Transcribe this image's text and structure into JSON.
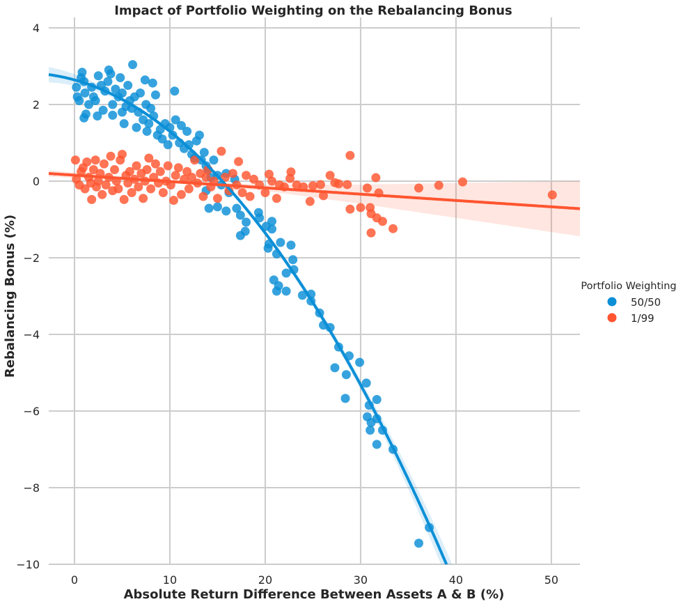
{
  "chart_data": {
    "type": "scatter",
    "title": "Impact of Portfolio Weighting on the Rebalancing Bonus",
    "xlabel": "Absolute Return Difference Between Assets A & B (%)",
    "ylabel": "Rebalancing Bonus (%)",
    "xlim": [
      -2.7,
      53
    ],
    "ylim": [
      -10,
      4
    ],
    "xticks": [
      0,
      10,
      20,
      30,
      40,
      50
    ],
    "yticks": [
      4,
      2,
      0,
      -2,
      -4,
      -6,
      -8,
      -10
    ],
    "ytick_labels": [
      "4",
      "2",
      "0",
      "−2",
      "−4",
      "−6",
      "−8",
      "−10"
    ],
    "grid": true,
    "legend": {
      "title": "Portfolio Weighting",
      "placement": "right"
    },
    "series": [
      {
        "name": "50/50",
        "color": "#0b8fd7",
        "fit": {
          "order": 2,
          "coef": [
            2.641,
            -0.069,
            -0.006541
          ]
        },
        "ci_halfwidth": [
          [
            -2.7,
            0.2
          ],
          [
            5,
            0.06
          ],
          [
            15,
            0.05
          ],
          [
            30,
            0.12
          ],
          [
            39,
            0.35
          ]
        ],
        "points": [
          [
            0.8,
            2.84
          ],
          [
            3.6,
            2.9
          ],
          [
            6.1,
            3.04
          ],
          [
            7.4,
            2.64
          ],
          [
            8.2,
            2.56
          ],
          [
            10.5,
            2.35
          ],
          [
            0.2,
            2.45
          ],
          [
            0.3,
            2.2
          ],
          [
            0.5,
            2.1
          ],
          [
            0.7,
            2.7
          ],
          [
            1.0,
            2.6
          ],
          [
            1.1,
            2.3
          ],
          [
            1.2,
            1.75
          ],
          [
            1.0,
            1.65
          ],
          [
            1.5,
            2.0
          ],
          [
            1.8,
            2.45
          ],
          [
            2.0,
            2.2
          ],
          [
            2.2,
            2.1
          ],
          [
            2.4,
            1.7
          ],
          [
            2.5,
            2.75
          ],
          [
            2.8,
            2.5
          ],
          [
            3.0,
            1.85
          ],
          [
            3.2,
            2.35
          ],
          [
            3.5,
            2.6
          ],
          [
            3.8,
            2.8
          ],
          [
            4.0,
            2.0
          ],
          [
            4.0,
            1.72
          ],
          [
            4.3,
            2.4
          ],
          [
            4.6,
            2.2
          ],
          [
            4.8,
            2.7
          ],
          [
            5.0,
            2.3
          ],
          [
            5.0,
            1.8
          ],
          [
            5.2,
            1.5
          ],
          [
            5.4,
            1.95
          ],
          [
            5.6,
            2.5
          ],
          [
            5.8,
            2.1
          ],
          [
            6.0,
            1.9
          ],
          [
            6.3,
            2.2
          ],
          [
            6.5,
            1.4
          ],
          [
            6.7,
            1.8
          ],
          [
            6.9,
            2.3
          ],
          [
            7.2,
            1.6
          ],
          [
            7.5,
            2.0
          ],
          [
            7.6,
            1.3
          ],
          [
            7.8,
            1.5
          ],
          [
            8.0,
            1.9
          ],
          [
            8.3,
            1.7
          ],
          [
            8.5,
            2.25
          ],
          [
            8.7,
            1.2
          ],
          [
            9.0,
            1.35
          ],
          [
            9.2,
            1.1
          ],
          [
            9.5,
            1.5
          ],
          [
            9.8,
            0.95
          ],
          [
            10.0,
            1.4
          ],
          [
            10.3,
            1.2
          ],
          [
            10.6,
            1.6
          ],
          [
            11.0,
            1.0
          ],
          [
            11.2,
            1.45
          ],
          [
            11.5,
            0.85
          ],
          [
            11.8,
            1.3
          ],
          [
            12.0,
            0.95
          ],
          [
            12.3,
            0.7
          ],
          [
            12.6,
            0.6
          ],
          [
            12.8,
            1.05
          ],
          [
            13.1,
            1.2
          ],
          [
            13.3,
            0.55
          ],
          [
            13.6,
            0.75
          ],
          [
            13.8,
            0.4
          ],
          [
            14.0,
            0.3
          ],
          [
            14.3,
            0.1
          ],
          [
            14.6,
            0.55
          ],
          [
            15.0,
            0.15
          ],
          [
            15.4,
            -0.1
          ],
          [
            15.9,
            0.2
          ],
          [
            16.2,
            -0.3
          ],
          [
            16.8,
            0.05
          ],
          [
            13.8,
            -0.25
          ],
          [
            14.1,
            -0.71
          ],
          [
            15.0,
            -0.67
          ],
          [
            15.9,
            -0.78
          ],
          [
            17.0,
            -0.71
          ],
          [
            17.4,
            -0.89
          ],
          [
            17.4,
            -1.42
          ],
          [
            17.9,
            -1.31
          ],
          [
            18.0,
            -1.07
          ],
          [
            19.3,
            -0.82
          ],
          [
            19.4,
            -0.96
          ],
          [
            20.1,
            -1.18
          ],
          [
            20.7,
            -1.05
          ],
          [
            20.7,
            -1.25
          ],
          [
            20.3,
            -1.75
          ],
          [
            20.4,
            -1.64
          ],
          [
            21.2,
            -1.9
          ],
          [
            21.6,
            -1.6
          ],
          [
            22.7,
            -1.67
          ],
          [
            22.9,
            -2.05
          ],
          [
            23.0,
            -2.31
          ],
          [
            22.2,
            -2.4
          ],
          [
            20.9,
            -2.58
          ],
          [
            21.2,
            -2.87
          ],
          [
            21.4,
            -2.73
          ],
          [
            22.2,
            -2.87
          ],
          [
            23.9,
            -2.98
          ],
          [
            24.8,
            -2.95
          ],
          [
            24.8,
            -3.13
          ],
          [
            25.7,
            -3.44
          ],
          [
            26.1,
            -3.76
          ],
          [
            26.8,
            -3.82
          ],
          [
            27.7,
            -4.33
          ],
          [
            27.3,
            -4.87
          ],
          [
            28.5,
            -5.05
          ],
          [
            28.4,
            -5.67
          ],
          [
            28.8,
            -4.56
          ],
          [
            29.9,
            -4.73
          ],
          [
            30.6,
            -5.27
          ],
          [
            30.9,
            -5.85
          ],
          [
            31.7,
            -6.2
          ],
          [
            30.7,
            -6.15
          ],
          [
            32.3,
            -6.5
          ],
          [
            31.0,
            -6.5
          ],
          [
            31.1,
            -6.3
          ],
          [
            31.7,
            -6.87
          ],
          [
            31.7,
            -5.7
          ],
          [
            33.4,
            -7.0
          ],
          [
            36.1,
            -9.45
          ],
          [
            37.2,
            -9.04
          ]
        ]
      },
      {
        "name": "1/99",
        "color": "#ff5530",
        "fit": {
          "order": 1,
          "coef": [
            0.155,
            -0.0165
          ]
        },
        "ci_halfwidth": [
          [
            -2.7,
            0.08
          ],
          [
            10,
            0.04
          ],
          [
            20,
            0.08
          ],
          [
            30,
            0.25
          ],
          [
            53,
            0.72
          ]
        ],
        "points": [
          [
            0.1,
            0.55
          ],
          [
            0.2,
            0.05
          ],
          [
            0.5,
            -0.1
          ],
          [
            0.7,
            0.25
          ],
          [
            0.9,
            0.35
          ],
          [
            1.1,
            -0.2
          ],
          [
            1.3,
            0.5
          ],
          [
            1.5,
            0.1
          ],
          [
            1.7,
            -0.05
          ],
          [
            1.8,
            -0.48
          ],
          [
            2.0,
            0.3
          ],
          [
            2.2,
            0.55
          ],
          [
            2.3,
            -0.15
          ],
          [
            2.5,
            0.0
          ],
          [
            2.7,
            0.2
          ],
          [
            2.9,
            -0.35
          ],
          [
            3.1,
            0.45
          ],
          [
            3.3,
            -0.1
          ],
          [
            3.6,
            0.1
          ],
          [
            3.8,
            0.65
          ],
          [
            4.0,
            -0.25
          ],
          [
            4.2,
            0.3
          ],
          [
            4.4,
            0.0
          ],
          [
            4.6,
            -0.2
          ],
          [
            4.8,
            0.55
          ],
          [
            5.0,
            0.7
          ],
          [
            5.2,
            -0.48
          ],
          [
            5.4,
            0.15
          ],
          [
            5.6,
            -0.05
          ],
          [
            5.8,
            0.25
          ],
          [
            6.0,
            -0.3
          ],
          [
            6.3,
            0.05
          ],
          [
            6.5,
            0.4
          ],
          [
            6.7,
            -0.15
          ],
          [
            7.0,
            0.2
          ],
          [
            7.2,
            -0.45
          ],
          [
            7.4,
            0.0
          ],
          [
            7.6,
            0.3
          ],
          [
            7.8,
            0.6
          ],
          [
            8.0,
            -0.2
          ],
          [
            8.3,
            0.1
          ],
          [
            8.5,
            0.45
          ],
          [
            8.8,
            -0.05
          ],
          [
            9.0,
            0.25
          ],
          [
            9.3,
            -0.3
          ],
          [
            9.6,
            0.0
          ],
          [
            9.8,
            0.4
          ],
          [
            10.1,
            -0.1
          ],
          [
            10.4,
            -0.5
          ],
          [
            10.6,
            0.15
          ],
          [
            10.9,
            0.35
          ],
          [
            11.2,
            -0.35
          ],
          [
            11.5,
            0.05
          ],
          [
            11.8,
            0.25
          ],
          [
            12.0,
            -0.2
          ],
          [
            12.3,
            0.1
          ],
          [
            12.6,
            0.55
          ],
          [
            12.9,
            -0.05
          ],
          [
            13.2,
            0.2
          ],
          [
            13.5,
            -0.4
          ],
          [
            13.8,
            0.1
          ],
          [
            14.0,
            0.3
          ],
          [
            14.3,
            -0.15
          ],
          [
            14.6,
            0.0
          ],
          [
            15.0,
            -0.45
          ],
          [
            15.4,
            0.78
          ],
          [
            15.8,
            0.1
          ],
          [
            16.2,
            -0.25
          ],
          [
            16.6,
            0.2
          ],
          [
            17.0,
            -0.1
          ],
          [
            17.2,
            0.51
          ],
          [
            17.6,
            -0.3
          ],
          [
            18.0,
            0.15
          ],
          [
            18.4,
            -0.4
          ],
          [
            18.8,
            0.05
          ],
          [
            19.4,
            -0.1
          ],
          [
            20.0,
            -0.3
          ],
          [
            20.4,
            0.18
          ],
          [
            20.7,
            0.0
          ],
          [
            21.2,
            -0.45
          ],
          [
            21.5,
            -0.1
          ],
          [
            22.0,
            -0.15
          ],
          [
            22.6,
            0.07
          ],
          [
            22.7,
            0.24
          ],
          [
            23.3,
            -0.1
          ],
          [
            24.0,
            -0.15
          ],
          [
            24.7,
            -0.53
          ],
          [
            25.0,
            -0.12
          ],
          [
            25.8,
            -0.09
          ],
          [
            26.1,
            -0.38
          ],
          [
            26.8,
            0.15
          ],
          [
            27.3,
            -0.04
          ],
          [
            27.7,
            -0.07
          ],
          [
            28.6,
            -0.09
          ],
          [
            28.9,
            0.67
          ],
          [
            28.9,
            -0.73
          ],
          [
            30.0,
            -0.69
          ],
          [
            30.7,
            -0.18
          ],
          [
            31.0,
            -0.69
          ],
          [
            31.1,
            -0.85
          ],
          [
            31.1,
            -1.35
          ],
          [
            31.6,
            0.09
          ],
          [
            31.7,
            -0.96
          ],
          [
            31.9,
            -0.31
          ],
          [
            32.3,
            -1.05
          ],
          [
            33.4,
            -1.24
          ],
          [
            36.1,
            -0.18
          ],
          [
            38.2,
            -0.11
          ],
          [
            40.7,
            -0.02
          ],
          [
            50.1,
            -0.36
          ]
        ]
      }
    ]
  }
}
